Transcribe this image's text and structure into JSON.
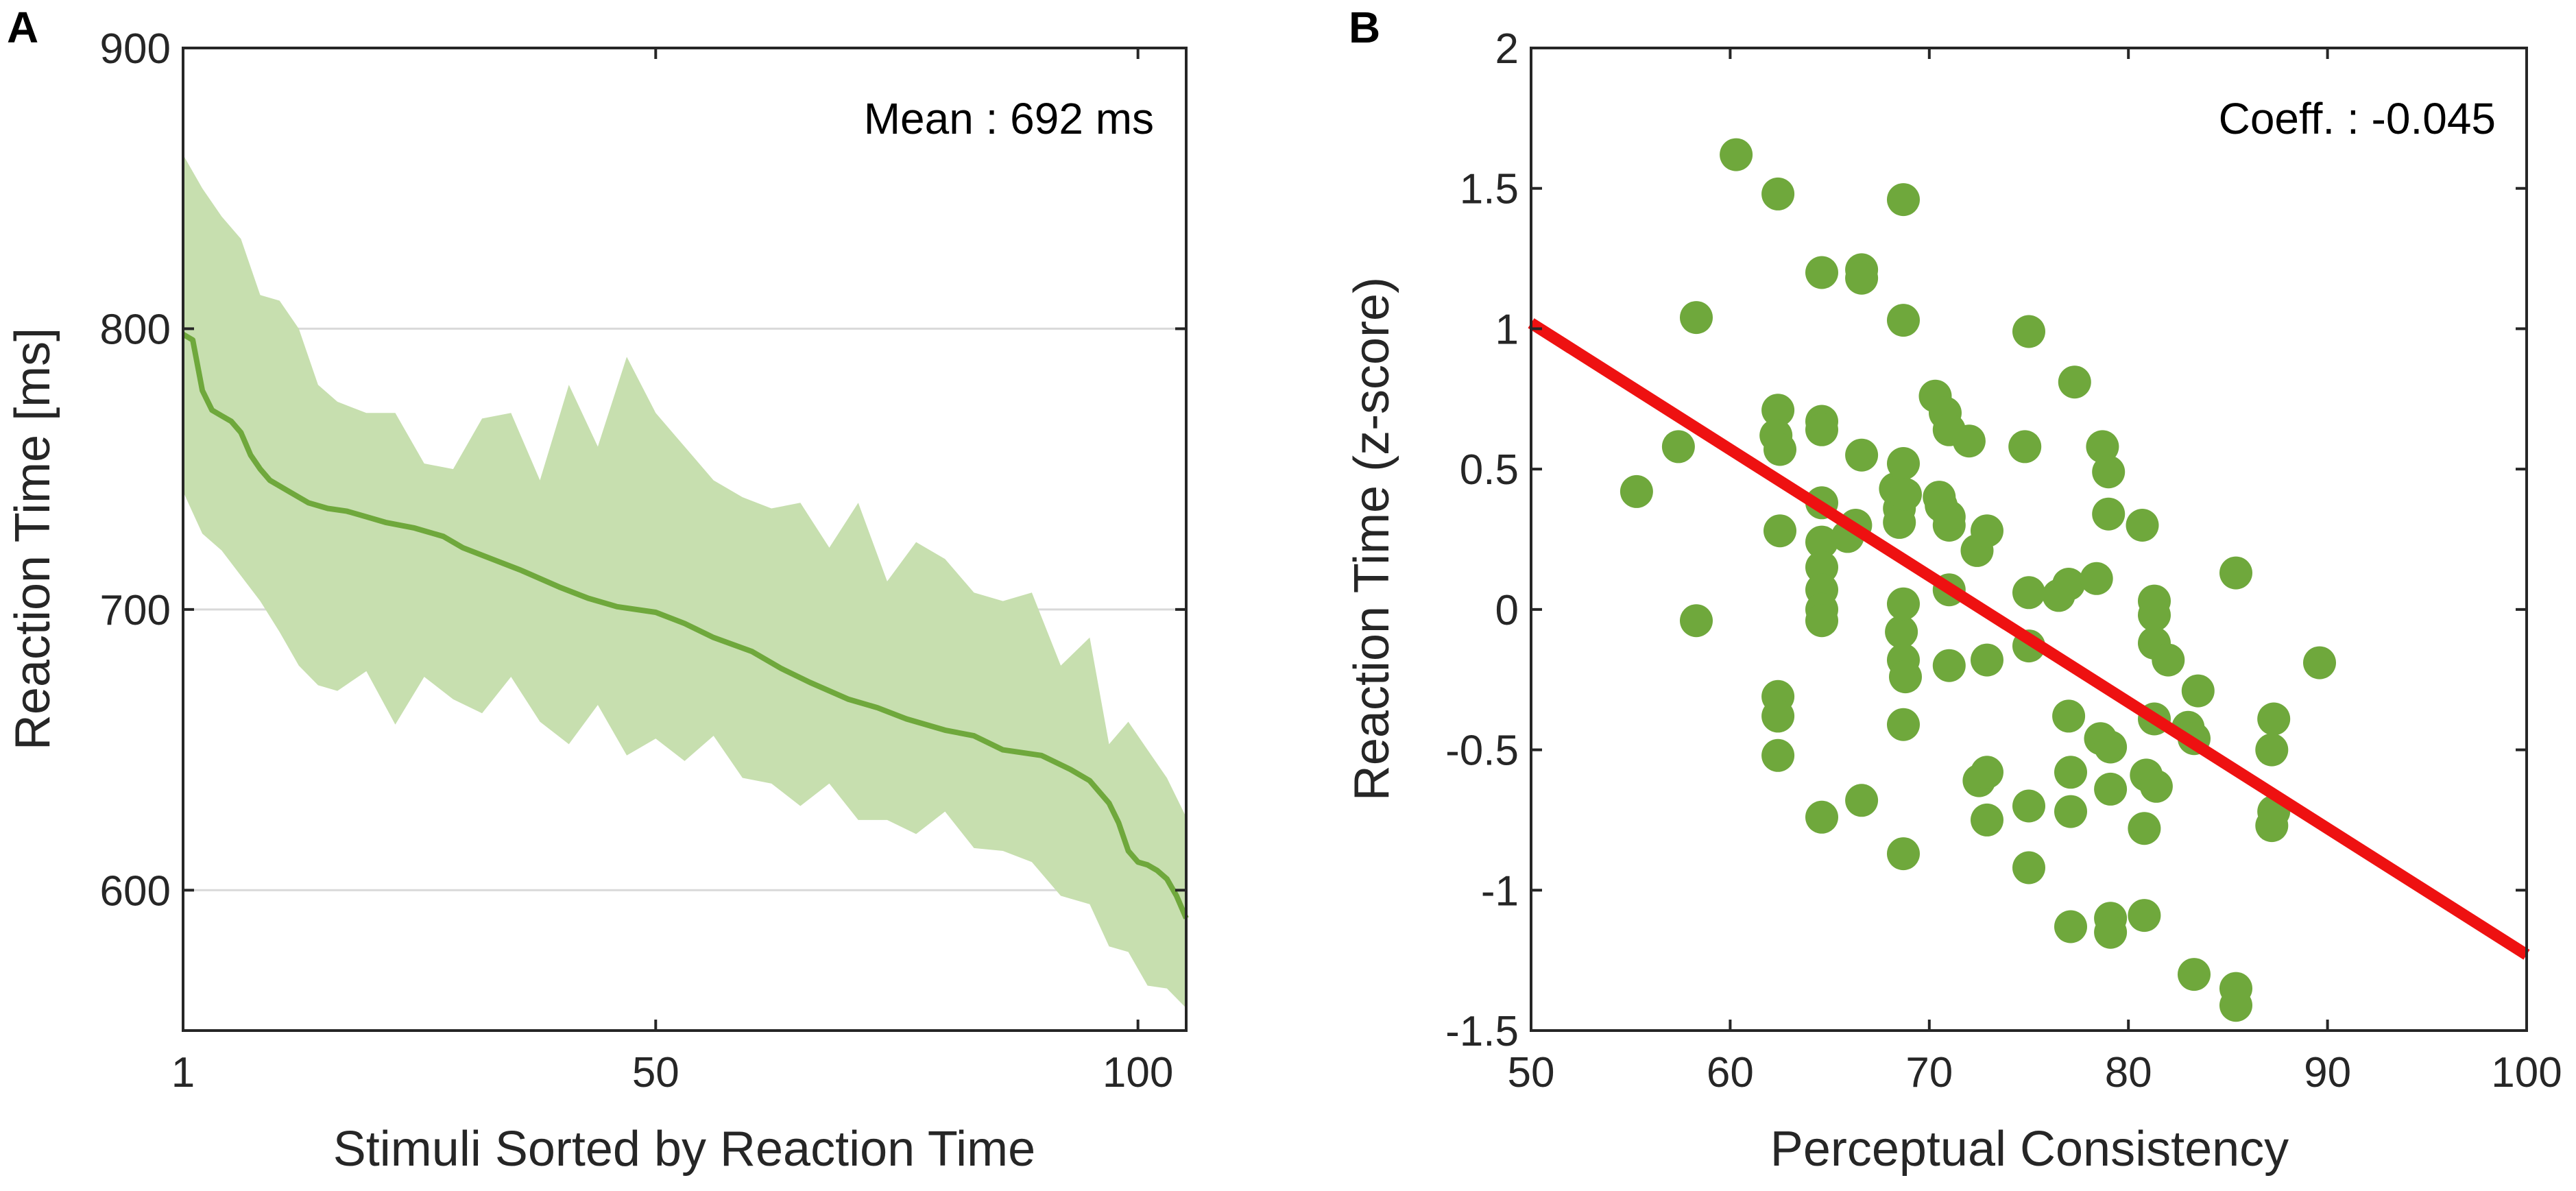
{
  "chart_data": [
    {
      "panel_label": "A",
      "type": "line",
      "title": "",
      "xlabel": "Stimuli Sorted by Reaction Time",
      "ylabel": "Reaction Time [ms]",
      "xlim": [
        1,
        105
      ],
      "ylim": [
        550,
        900
      ],
      "xticks": [
        1,
        50,
        100
      ],
      "yticks": [
        600,
        700,
        800,
        900
      ],
      "grid": "horizontal",
      "annotation": "Mean : 692 ms",
      "series": [
        {
          "name": "mean",
          "color": "#6fa83c",
          "x": [
            1,
            2,
            3,
            4,
            5,
            6,
            7,
            8,
            9,
            10,
            12,
            14,
            16,
            18,
            20,
            22,
            25,
            28,
            30,
            33,
            36,
            40,
            43,
            46,
            50,
            53,
            56,
            60,
            63,
            66,
            70,
            73,
            76,
            80,
            83,
            86,
            90,
            93,
            95,
            97,
            98,
            99,
            100,
            101,
            102,
            103,
            104,
            105
          ],
          "y": [
            798,
            796,
            778,
            771,
            769,
            767,
            763,
            755,
            750,
            746,
            742,
            738,
            736,
            735,
            733,
            731,
            729,
            726,
            722,
            718,
            714,
            708,
            704,
            701,
            699,
            695,
            690,
            685,
            679,
            674,
            668,
            665,
            661,
            657,
            655,
            650,
            648,
            643,
            639,
            631,
            624,
            614,
            610,
            609,
            607,
            604,
            598,
            590
          ]
        },
        {
          "name": "upper-band",
          "x": [
            1,
            3,
            5,
            7,
            9,
            11,
            13,
            15,
            17,
            20,
            23,
            26,
            29,
            32,
            35,
            38,
            41,
            44,
            47,
            50,
            53,
            56,
            59,
            62,
            65,
            68,
            71,
            74,
            77,
            80,
            83,
            86,
            89,
            92,
            95,
            97,
            99,
            101,
            103,
            105
          ],
          "y": [
            862,
            850,
            840,
            832,
            812,
            810,
            800,
            780,
            774,
            770,
            770,
            752,
            750,
            768,
            770,
            746,
            780,
            758,
            790,
            770,
            758,
            746,
            740,
            736,
            738,
            722,
            738,
            710,
            724,
            718,
            706,
            703,
            706,
            680,
            690,
            652,
            660,
            650,
            640,
            626
          ]
        },
        {
          "name": "lower-band",
          "x": [
            1,
            3,
            5,
            7,
            9,
            11,
            13,
            15,
            17,
            20,
            23,
            26,
            29,
            32,
            35,
            38,
            41,
            44,
            47,
            50,
            53,
            56,
            59,
            62,
            65,
            68,
            71,
            74,
            77,
            80,
            83,
            86,
            89,
            92,
            95,
            97,
            99,
            101,
            103,
            105
          ],
          "y": [
            742,
            727,
            721,
            712,
            703,
            692,
            680,
            673,
            671,
            678,
            659,
            676,
            668,
            663,
            676,
            660,
            652,
            666,
            648,
            654,
            646,
            655,
            640,
            638,
            630,
            638,
            625,
            625,
            620,
            628,
            615,
            614,
            610,
            598,
            595,
            580,
            578,
            566,
            565,
            558
          ]
        }
      ]
    },
    {
      "panel_label": "B",
      "type": "scatter",
      "title": "",
      "xlabel": "Perceptual Consistency",
      "ylabel": "Reaction Time (z-score)",
      "xlim": [
        50,
        100
      ],
      "ylim": [
        -1.5,
        2
      ],
      "xticks": [
        50,
        60,
        70,
        80,
        90,
        100
      ],
      "yticks": [
        -1.5,
        -1,
        -0.5,
        0,
        0.5,
        1,
        1.5,
        2
      ],
      "ytick_labels": [
        "-1.5",
        "-1",
        "-0.5",
        "0",
        "0.5",
        "1",
        "1.5",
        "2"
      ],
      "annotation": "Coeff. :   -0.045",
      "point_color": "#6fa83c",
      "fit_color": "#ee1111",
      "fit_line": {
        "x": [
          50,
          100
        ],
        "y": [
          1.02,
          -1.23
        ]
      },
      "points": [
        [
          55.3,
          0.42
        ],
        [
          57.4,
          0.58
        ],
        [
          58.3,
          1.04
        ],
        [
          58.3,
          -0.04
        ],
        [
          60.3,
          1.62
        ],
        [
          62.4,
          1.48
        ],
        [
          62.4,
          0.71
        ],
        [
          62.3,
          0.62
        ],
        [
          62.5,
          0.57
        ],
        [
          62.5,
          0.28
        ],
        [
          62.4,
          -0.31
        ],
        [
          62.4,
          -0.38
        ],
        [
          62.4,
          -0.52
        ],
        [
          64.6,
          1.2
        ],
        [
          64.6,
          0.67
        ],
        [
          64.6,
          0.64
        ],
        [
          64.6,
          0.38
        ],
        [
          64.6,
          0.24
        ],
        [
          64.6,
          0.15
        ],
        [
          64.6,
          0.07
        ],
        [
          64.6,
          0.0
        ],
        [
          64.6,
          -0.04
        ],
        [
          64.6,
          -0.74
        ],
        [
          65.9,
          0.26
        ],
        [
          66.3,
          0.3
        ],
        [
          66.6,
          1.21
        ],
        [
          66.6,
          1.18
        ],
        [
          66.6,
          0.55
        ],
        [
          66.6,
          -0.68
        ],
        [
          68.3,
          0.43
        ],
        [
          68.5,
          0.36
        ],
        [
          68.5,
          0.31
        ],
        [
          68.6,
          -0.08
        ],
        [
          68.7,
          1.46
        ],
        [
          68.7,
          1.03
        ],
        [
          68.7,
          0.52
        ],
        [
          68.8,
          0.41
        ],
        [
          68.7,
          0.02
        ],
        [
          68.7,
          -0.18
        ],
        [
          68.8,
          -0.24
        ],
        [
          68.7,
          -0.41
        ],
        [
          68.7,
          -0.87
        ],
        [
          70.3,
          0.76
        ],
        [
          70.5,
          0.4
        ],
        [
          70.6,
          0.37
        ],
        [
          70.8,
          0.7
        ],
        [
          71.0,
          0.64
        ],
        [
          71.0,
          0.33
        ],
        [
          71.0,
          0.3
        ],
        [
          71.0,
          0.07
        ],
        [
          71.0,
          -0.2
        ],
        [
          72.0,
          0.6
        ],
        [
          72.4,
          0.21
        ],
        [
          72.9,
          0.28
        ],
        [
          72.5,
          -0.61
        ],
        [
          72.9,
          -0.58
        ],
        [
          72.9,
          -0.75
        ],
        [
          72.9,
          -0.18
        ],
        [
          74.8,
          0.58
        ],
        [
          75.0,
          0.99
        ],
        [
          75.0,
          0.06
        ],
        [
          75.0,
          -0.13
        ],
        [
          75.0,
          -0.7
        ],
        [
          75.0,
          -0.92
        ],
        [
          76.5,
          0.05
        ],
        [
          77.0,
          0.09
        ],
        [
          77.0,
          -0.38
        ],
        [
          77.1,
          -0.58
        ],
        [
          77.1,
          -0.72
        ],
        [
          77.1,
          -1.13
        ],
        [
          77.3,
          0.81
        ],
        [
          78.4,
          0.11
        ],
        [
          78.7,
          0.58
        ],
        [
          78.6,
          -0.46
        ],
        [
          79.0,
          0.49
        ],
        [
          79.0,
          0.34
        ],
        [
          79.1,
          -0.49
        ],
        [
          79.1,
          -0.64
        ],
        [
          79.1,
          -1.1
        ],
        [
          79.1,
          -1.15
        ],
        [
          80.7,
          0.3
        ],
        [
          80.9,
          -0.59
        ],
        [
          80.8,
          -0.78
        ],
        [
          80.8,
          -1.09
        ],
        [
          81.3,
          0.03
        ],
        [
          81.3,
          -0.02
        ],
        [
          81.3,
          -0.12
        ],
        [
          81.3,
          -0.39
        ],
        [
          81.4,
          -0.63
        ],
        [
          82.0,
          -0.18
        ],
        [
          83.0,
          -0.42
        ],
        [
          83.3,
          -0.46
        ],
        [
          83.5,
          -0.29
        ],
        [
          83.3,
          -1.3
        ],
        [
          85.4,
          0.13
        ],
        [
          85.4,
          -1.35
        ],
        [
          85.4,
          -1.41
        ],
        [
          87.3,
          -0.39
        ],
        [
          87.2,
          -0.5
        ],
        [
          87.3,
          -0.72
        ],
        [
          87.2,
          -0.77
        ],
        [
          89.6,
          -0.19
        ]
      ]
    }
  ]
}
